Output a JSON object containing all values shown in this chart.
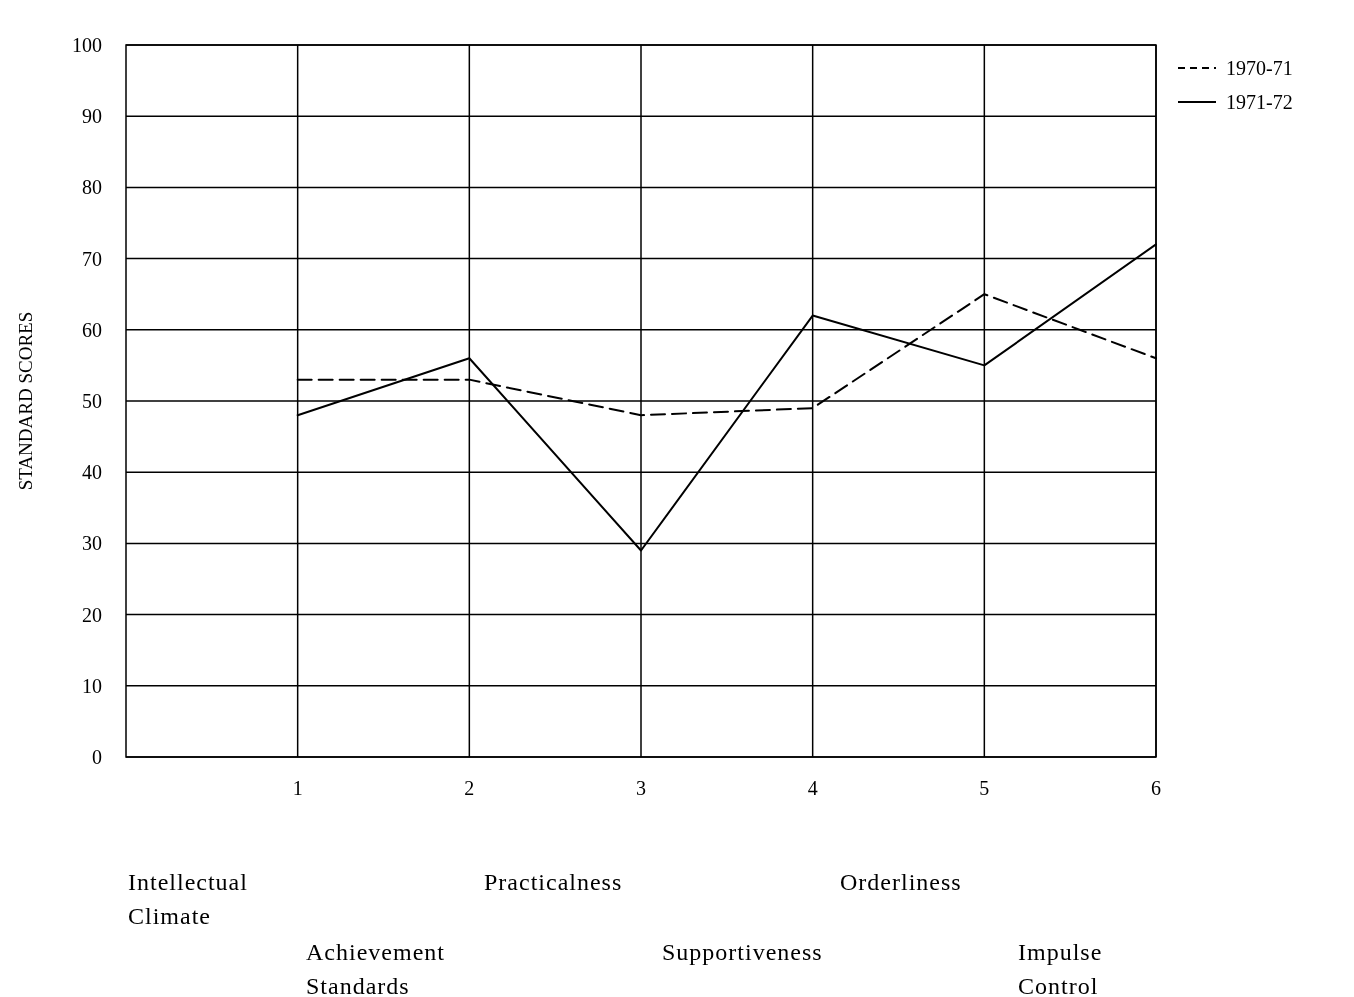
{
  "chart_data": {
    "type": "line",
    "ylabel": "STANDARD SCORES",
    "x": [
      1,
      2,
      3,
      4,
      5,
      6
    ],
    "xlim": [
      0,
      6
    ],
    "xticks": [
      1,
      2,
      3,
      4,
      5,
      6
    ],
    "ylim": [
      0,
      100
    ],
    "yticks": [
      0,
      10,
      20,
      30,
      40,
      50,
      60,
      70,
      80,
      90,
      100
    ],
    "grid": true,
    "legend": "top right",
    "series": [
      {
        "name": "1970-71",
        "color": "#000000",
        "line_style": "dashed",
        "values": [
          53,
          53,
          48,
          49,
          65,
          56
        ]
      },
      {
        "name": "1971-72",
        "color": "#000000",
        "line_style": "solid",
        "values": [
          48,
          56,
          29,
          62,
          55,
          72
        ]
      }
    ],
    "annotations": [
      "Intellectual\nClimate",
      "Achievement\nStandards",
      "Practicalness",
      "Supportiveness",
      "Orderliness",
      "Impulse\nControl"
    ]
  }
}
